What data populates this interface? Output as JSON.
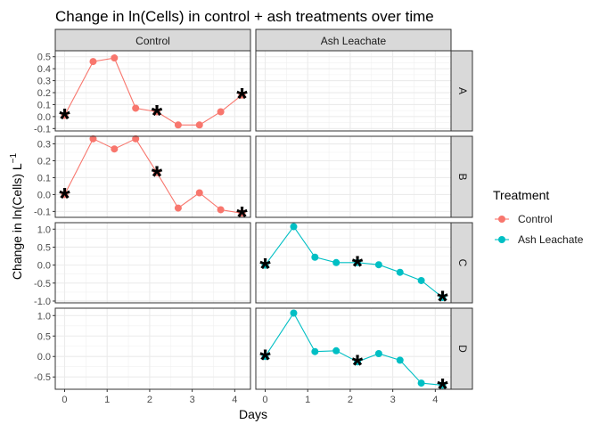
{
  "chart_data": {
    "type": "line",
    "title": "Change in ln(Cells) in control + ash treatments over time",
    "xlabel": "Days",
    "ylabel_main": "Change in ln(Cells) L",
    "ylabel_sup": "−1",
    "x_ticks": [
      "0",
      "1",
      "2",
      "3",
      "4"
    ],
    "xlim": [
      -0.22,
      4.37
    ],
    "columns": [
      "Control",
      "Ash Leachate"
    ],
    "rows": [
      {
        "label": "A",
        "ylim": [
          -0.12,
          0.55
        ],
        "ticks": [
          -0.1,
          0.0,
          0.1,
          0.2,
          0.3,
          0.4,
          0.5
        ],
        "tick_labels": [
          "-0.1",
          "0.0",
          "0.1",
          "0.2",
          "0.3",
          "0.4",
          "0.5"
        ]
      },
      {
        "label": "B",
        "ylim": [
          -0.135,
          0.345
        ],
        "ticks": [
          -0.1,
          0.0,
          0.1,
          0.2,
          0.3
        ],
        "tick_labels": [
          "-0.1",
          "0.0",
          "0.1",
          "0.2",
          "0.3"
        ]
      },
      {
        "label": "C",
        "ylim": [
          -1.05,
          1.18
        ],
        "ticks": [
          -1.0,
          -0.5,
          0.0,
          0.5,
          1.0
        ],
        "tick_labels": [
          "-1.0",
          "-0.5",
          "0.0",
          "0.5",
          "1.0"
        ]
      },
      {
        "label": "D",
        "ylim": [
          -0.8,
          1.18
        ],
        "ticks": [
          -0.5,
          0.0,
          0.5,
          1.0
        ],
        "tick_labels": [
          "-0.5",
          "0.0",
          "0.5",
          "1.0"
        ]
      }
    ],
    "legend": {
      "title": "Treatment",
      "position": "right",
      "items": [
        {
          "name": "Control",
          "color": "#F8766D"
        },
        {
          "name": "Ash Leachate",
          "color": "#00BFC4"
        }
      ]
    },
    "marker_symbol": "*",
    "series": [
      {
        "name": "Control",
        "row": "A",
        "col": 0,
        "color": "#F8766D",
        "x": [
          0,
          0.67,
          1.17,
          1.67,
          2.17,
          2.67,
          3.17,
          3.67,
          4.17
        ],
        "y": [
          0.01,
          0.46,
          0.49,
          0.07,
          0.04,
          -0.07,
          -0.07,
          0.04,
          0.18
        ],
        "stars": [
          0,
          2.17,
          4.17
        ]
      },
      {
        "name": "Control",
        "row": "B",
        "col": 0,
        "color": "#F8766D",
        "x": [
          0,
          0.67,
          1.17,
          1.67,
          2.17,
          2.67,
          3.17,
          3.67,
          4.17
        ],
        "y": [
          0.0,
          0.33,
          0.27,
          0.33,
          0.13,
          -0.08,
          0.01,
          -0.09,
          -0.11
        ],
        "stars": [
          0,
          2.17,
          4.17
        ]
      },
      {
        "name": "Ash Leachate",
        "row": "C",
        "col": 1,
        "color": "#00BFC4",
        "x": [
          0,
          0.67,
          1.17,
          1.67,
          2.17,
          2.67,
          3.17,
          3.67,
          4.17
        ],
        "y": [
          0.0,
          1.07,
          0.22,
          0.07,
          0.07,
          0.01,
          -0.2,
          -0.43,
          -0.9
        ],
        "stars": [
          0,
          2.17,
          4.17
        ]
      },
      {
        "name": "Ash Leachate",
        "row": "D",
        "col": 1,
        "color": "#00BFC4",
        "x": [
          0,
          0.67,
          1.17,
          1.67,
          2.17,
          2.67,
          3.17,
          3.67,
          4.17
        ],
        "y": [
          0.0,
          1.06,
          0.12,
          0.14,
          -0.13,
          0.07,
          -0.09,
          -0.65,
          -0.7
        ],
        "stars": [
          0,
          2.17,
          4.17
        ]
      }
    ]
  }
}
